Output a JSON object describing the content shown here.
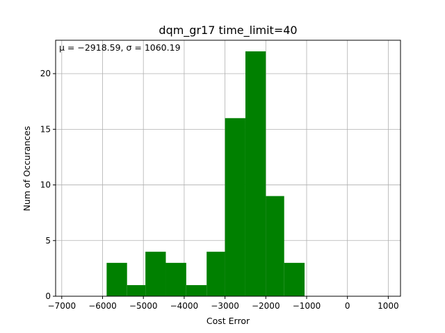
{
  "chart_data": {
    "type": "bar",
    "title": "dqm_gr17 time_limit=40",
    "xlabel": "Cost Error",
    "ylabel": "Num of Occurances",
    "annotation": "μ = −2918.59,  σ = 1060.19",
    "xlim": [
      -7150,
      1300
    ],
    "ylim": [
      0,
      23
    ],
    "grid": true,
    "bar_color": "#008000",
    "x_ticks": [
      -7000,
      -6000,
      -5000,
      -4000,
      -3000,
      -2000,
      -1000,
      0,
      1000
    ],
    "x_tick_labels": [
      "−7000",
      "−6000",
      "−5000",
      "−4000",
      "−3000",
      "−2000",
      "−1000",
      "0",
      "1000"
    ],
    "y_ticks": [
      0,
      5,
      10,
      15,
      20
    ],
    "y_tick_labels": [
      "0",
      "5",
      "10",
      "15",
      "20"
    ],
    "bin_edges": [
      -5900,
      -5400,
      -4950,
      -4450,
      -3950,
      -3450,
      -3000,
      -2500,
      -2000,
      -1550,
      -1050
    ],
    "counts": [
      3,
      1,
      4,
      3,
      1,
      4,
      16,
      22,
      9,
      3
    ]
  }
}
